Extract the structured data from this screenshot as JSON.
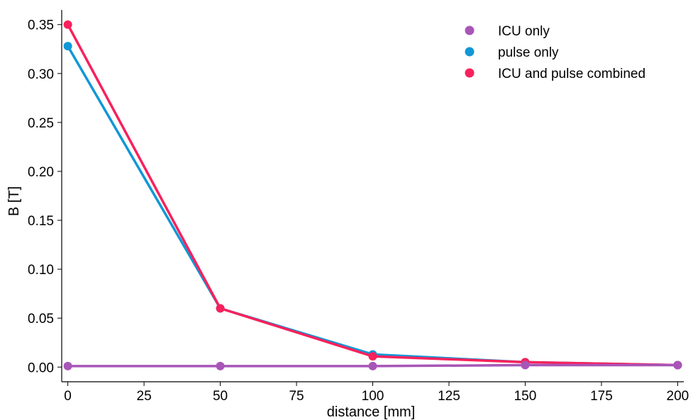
{
  "chart_data": {
    "type": "line",
    "xlabel": "distance [mm]",
    "ylabel": "B [T]",
    "x": [
      0,
      50,
      100,
      150,
      200
    ],
    "xlim": [
      -2,
      202
    ],
    "ylim": [
      -0.015,
      0.365
    ],
    "xticks": [
      "0",
      "25",
      "50",
      "75",
      "100",
      "125",
      "150",
      "175",
      "200"
    ],
    "yticks": [
      "0.00",
      "0.05",
      "0.10",
      "0.15",
      "0.20",
      "0.25",
      "0.30",
      "0.35"
    ],
    "grid": false,
    "legend_position": "top-right",
    "series": [
      {
        "name": "ICU only",
        "color": "#a855b8",
        "values": [
          0.001,
          0.001,
          0.001,
          0.002,
          0.002
        ]
      },
      {
        "name": "pulse only",
        "color": "#1097d6",
        "values": [
          0.328,
          0.06,
          0.013,
          0.005,
          0.002
        ]
      },
      {
        "name": "ICU and pulse combined",
        "color": "#f8215c",
        "values": [
          0.35,
          0.06,
          0.011,
          0.005,
          0.002
        ]
      }
    ],
    "draw_order": [
      1,
      2,
      0
    ]
  }
}
